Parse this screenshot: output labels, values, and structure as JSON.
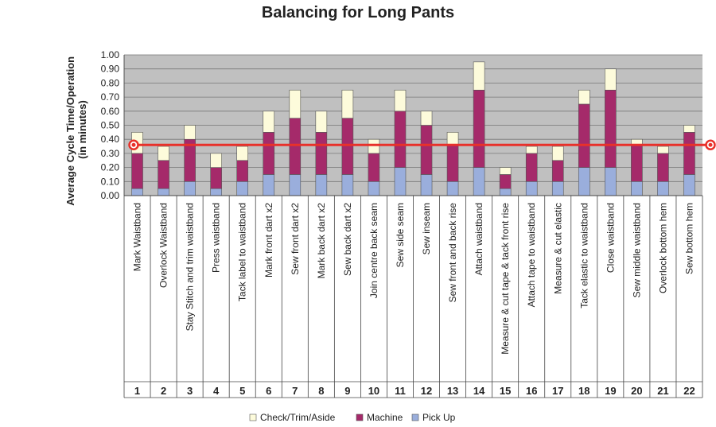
{
  "chart_data": {
    "type": "bar",
    "stacked": true,
    "title": "Balancing for Long Pants",
    "ylabel_line1": "Average Cycle Time/Operation",
    "ylabel_line2": "(in minutes)",
    "ylim": [
      0,
      1.0
    ],
    "yticks": [
      "0.00",
      "0.10",
      "0.20",
      "0.30",
      "0.40",
      "0.50",
      "0.60",
      "0.70",
      "0.80",
      "0.90",
      "1.00"
    ],
    "grid": true,
    "legend_position": "bottom",
    "numbers": [
      "1",
      "2",
      "3",
      "4",
      "5",
      "6",
      "7",
      "8",
      "9",
      "10",
      "11",
      "12",
      "13",
      "14",
      "15",
      "16",
      "17",
      "18",
      "19",
      "20",
      "21",
      "22"
    ],
    "categories": [
      "Mark Waistband",
      "Overlock Waistband",
      "Stay Stitch and trim waistband",
      "Press waistband",
      "Tack label to waistband",
      "Mark front dart x2",
      "Sew front dart x2",
      "Mark back dart x2",
      "Sew back dart x2",
      "Join centre back seam",
      "Sew side seam",
      "Sew inseam",
      "Sew front and back rise",
      "Attach waistband",
      "Measure & cut tape & tack front rise",
      "Attach tape to waistband",
      "Measure & cut elastic",
      "Tack elastic to waistband",
      "Close waistband",
      "Sew middle waistband",
      "Overlock bottom hem",
      "Sew bottom hem"
    ],
    "series": [
      {
        "name": "Pick Up",
        "color": "#9aaedc",
        "values": [
          0.05,
          0.05,
          0.1,
          0.05,
          0.1,
          0.15,
          0.15,
          0.15,
          0.15,
          0.1,
          0.2,
          0.15,
          0.1,
          0.2,
          0.05,
          0.1,
          0.1,
          0.2,
          0.2,
          0.1,
          0.1,
          0.15
        ]
      },
      {
        "name": "Machine",
        "color": "#a52a6a",
        "values": [
          0.25,
          0.2,
          0.3,
          0.15,
          0.15,
          0.3,
          0.4,
          0.3,
          0.4,
          0.2,
          0.4,
          0.35,
          0.26,
          0.55,
          0.1,
          0.2,
          0.15,
          0.45,
          0.55,
          0.26,
          0.2,
          0.3
        ]
      },
      {
        "name": "Check/Trim/Aside",
        "color": "#fdfbdb",
        "values": [
          0.15,
          0.1,
          0.1,
          0.1,
          0.1,
          0.15,
          0.2,
          0.15,
          0.2,
          0.1,
          0.15,
          0.1,
          0.09,
          0.2,
          0.05,
          0.05,
          0.1,
          0.1,
          0.15,
          0.04,
          0.05,
          0.05
        ]
      }
    ],
    "target_line": {
      "value": 0.36,
      "color": "#e8312a"
    },
    "legend_order": [
      "Check/Trim/Aside",
      "Machine",
      "Pick Up"
    ]
  }
}
